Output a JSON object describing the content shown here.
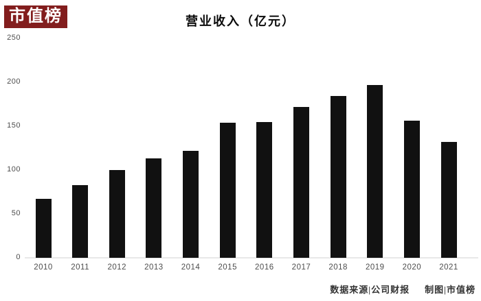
{
  "logo": {
    "text": "市值榜"
  },
  "title": "营业收入（亿元）",
  "footer": {
    "source": "数据来源|公司财报",
    "credit": "制图|市值榜"
  },
  "colors": {
    "logo_bg": "#821d1d",
    "bar": "#111111",
    "baseline": "#e8e8e8",
    "axis_text": "#4d4d4d"
  },
  "chart_data": {
    "type": "bar",
    "title": "营业收入（亿元）",
    "xlabel": "",
    "ylabel": "",
    "categories": [
      "2010",
      "2011",
      "2012",
      "2013",
      "2014",
      "2015",
      "2016",
      "2017",
      "2018",
      "2019",
      "2020",
      "2021"
    ],
    "values": [
      67,
      83,
      100,
      113,
      122,
      154,
      155,
      172,
      184,
      197,
      156,
      132
    ],
    "yticks": [
      250,
      200,
      150,
      100,
      50,
      0
    ],
    "ylim": [
      0,
      250
    ],
    "grid": false,
    "legend": false,
    "bar_color": "#111111"
  }
}
